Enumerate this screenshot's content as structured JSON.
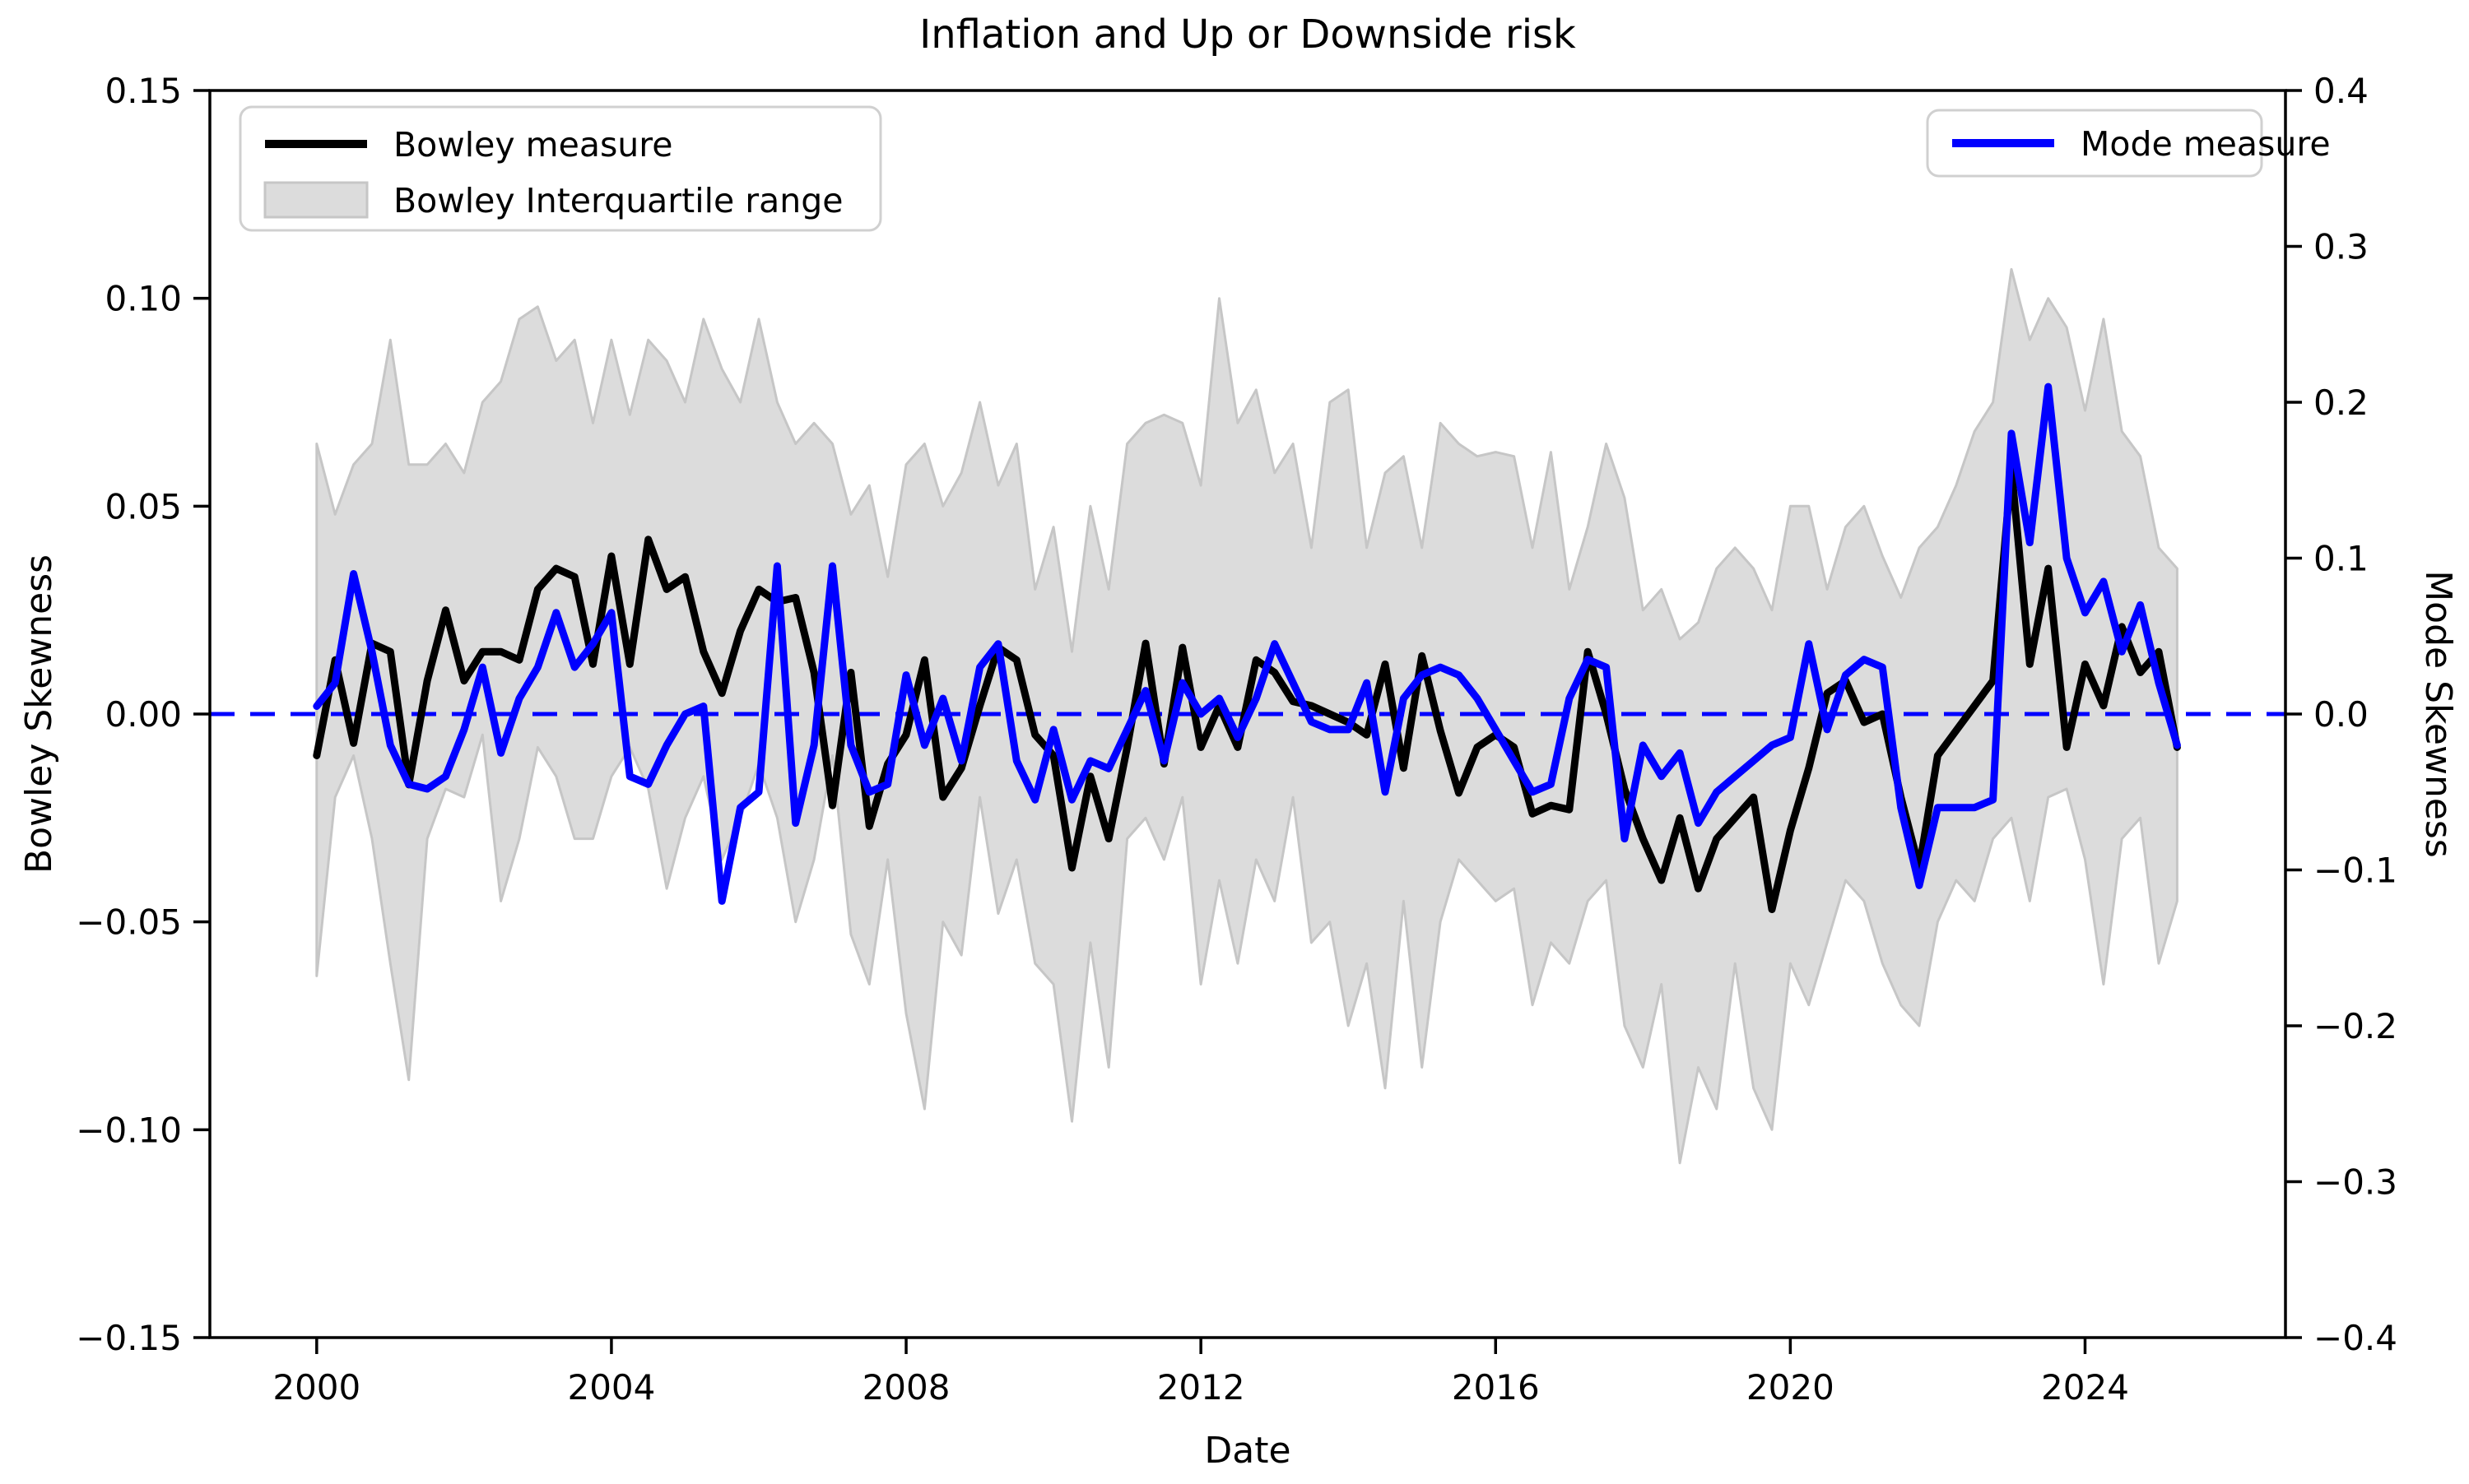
{
  "chart_data": {
    "type": "line",
    "title": "Inflation and Up or Downside risk",
    "xlabel": "Date",
    "ylabel_left": "Bowley Skewness",
    "ylabel_right": "Mode Skewness",
    "x_start": 2000.0,
    "x_step": 0.25,
    "xlim": [
      1998.55,
      2026.72
    ],
    "ylim_left": [
      -0.15,
      0.15
    ],
    "ylim_right": [
      -0.4,
      0.4
    ],
    "x_ticks": [
      2000,
      2004,
      2008,
      2012,
      2016,
      2020,
      2024
    ],
    "y_ticks_left": [
      0.15,
      0.1,
      0.05,
      0.0,
      -0.05,
      -0.1,
      -0.15
    ],
    "y_ticks_right": [
      0.4,
      0.3,
      0.2,
      0.1,
      0.0,
      -0.1,
      -0.2,
      -0.3,
      -0.4
    ],
    "zero_line_value": 0.0,
    "grid": false,
    "legend_left": {
      "entries": [
        {
          "label": "Bowley measure",
          "type": "line",
          "color": "#000000"
        },
        {
          "label": "Bowley Interquartile range",
          "type": "patch",
          "color": "#dcdcdc"
        }
      ],
      "position": "upper left"
    },
    "legend_right": {
      "entries": [
        {
          "label": "Mode measure",
          "type": "line",
          "color": "#0000ff"
        }
      ],
      "position": "upper right"
    },
    "colors": {
      "bowley_line": "#000000",
      "mode_line": "#0000ff",
      "iqr_fill": "#dcdcdc",
      "iqr_edge": "#c6c6c6",
      "zero_dashed": "#0000ff"
    },
    "series": [
      {
        "name": "Bowley measure",
        "axis": "left",
        "values": [
          -0.01,
          0.013,
          -0.007,
          0.017,
          0.015,
          -0.017,
          0.008,
          0.025,
          0.008,
          0.015,
          0.015,
          0.013,
          0.03,
          0.035,
          0.033,
          0.012,
          0.038,
          0.012,
          0.042,
          0.03,
          0.033,
          0.015,
          0.005,
          0.02,
          0.03,
          0.027,
          0.028,
          0.01,
          -0.022,
          0.01,
          -0.027,
          -0.012,
          -0.005,
          0.013,
          -0.02,
          -0.013,
          0.002,
          0.016,
          0.013,
          -0.005,
          -0.01,
          -0.037,
          -0.015,
          -0.03,
          -0.008,
          0.017,
          -0.012,
          0.016,
          -0.008,
          0.002,
          -0.008,
          0.013,
          0.01,
          0.003,
          0.002,
          0.0,
          -0.002,
          -0.005,
          0.012,
          -0.013,
          0.014,
          -0.004,
          -0.019,
          -0.008,
          -0.005,
          -0.008,
          -0.024,
          -0.022,
          -0.023,
          0.015,
          0.0,
          -0.018,
          -0.03,
          -0.04,
          -0.025,
          -0.042,
          -0.03,
          -0.025,
          -0.02,
          -0.047,
          -0.028,
          -0.013,
          0.005,
          0.008,
          -0.002,
          0.0,
          -0.02,
          -0.037,
          -0.01,
          -0.004,
          0.002,
          0.008,
          0.059,
          0.012,
          0.035,
          -0.008,
          0.012,
          0.002,
          0.021,
          0.01,
          0.015,
          -0.008
        ]
      },
      {
        "name": "Mode measure",
        "axis": "right",
        "values": [
          0.005,
          0.02,
          0.09,
          0.04,
          -0.02,
          -0.045,
          -0.048,
          -0.04,
          -0.01,
          0.03,
          -0.025,
          0.01,
          0.03,
          0.065,
          0.03,
          0.045,
          0.065,
          -0.04,
          -0.045,
          -0.02,
          0.0,
          0.005,
          -0.12,
          -0.06,
          -0.05,
          0.095,
          -0.07,
          -0.02,
          0.095,
          -0.02,
          -0.05,
          -0.045,
          0.025,
          -0.02,
          0.01,
          -0.03,
          0.03,
          0.045,
          -0.03,
          -0.055,
          -0.01,
          -0.055,
          -0.03,
          -0.035,
          -0.01,
          0.015,
          -0.03,
          0.02,
          0.0,
          0.01,
          -0.015,
          0.01,
          0.045,
          0.02,
          -0.005,
          -0.01,
          -0.01,
          0.02,
          -0.05,
          0.01,
          0.025,
          0.03,
          0.025,
          0.01,
          -0.01,
          -0.03,
          -0.05,
          -0.045,
          0.01,
          0.035,
          0.03,
          -0.08,
          -0.02,
          -0.04,
          -0.025,
          -0.07,
          -0.05,
          -0.04,
          -0.03,
          -0.02,
          -0.015,
          0.045,
          -0.01,
          0.025,
          0.035,
          0.03,
          -0.06,
          -0.11,
          -0.06,
          -0.06,
          -0.06,
          -0.055,
          0.18,
          0.11,
          0.21,
          0.1,
          0.065,
          0.085,
          0.04,
          0.07,
          0.02,
          -0.02
        ]
      },
      {
        "name": "Bowley Interquartile range upper",
        "axis": "left",
        "values": [
          0.065,
          0.048,
          0.06,
          0.065,
          0.09,
          0.06,
          0.06,
          0.065,
          0.058,
          0.075,
          0.08,
          0.095,
          0.098,
          0.085,
          0.09,
          0.07,
          0.09,
          0.072,
          0.09,
          0.085,
          0.075,
          0.095,
          0.083,
          0.075,
          0.095,
          0.075,
          0.065,
          0.07,
          0.065,
          0.048,
          0.055,
          0.033,
          0.06,
          0.065,
          0.05,
          0.058,
          0.075,
          0.055,
          0.065,
          0.03,
          0.045,
          0.015,
          0.05,
          0.03,
          0.065,
          0.07,
          0.072,
          0.07,
          0.055,
          0.1,
          0.07,
          0.078,
          0.058,
          0.065,
          0.04,
          0.075,
          0.078,
          0.04,
          0.058,
          0.062,
          0.04,
          0.07,
          0.065,
          0.062,
          0.063,
          0.062,
          0.04,
          0.063,
          0.03,
          0.045,
          0.065,
          0.052,
          0.025,
          0.03,
          0.018,
          0.022,
          0.035,
          0.04,
          0.035,
          0.025,
          0.05,
          0.05,
          0.03,
          0.045,
          0.05,
          0.038,
          0.028,
          0.04,
          0.045,
          0.055,
          0.068,
          0.075,
          0.107,
          0.09,
          0.1,
          0.093,
          0.073,
          0.095,
          0.068,
          0.062,
          0.04,
          0.035
        ]
      },
      {
        "name": "Bowley Interquartile range lower",
        "axis": "left",
        "values": [
          -0.063,
          -0.02,
          -0.01,
          -0.03,
          -0.06,
          -0.088,
          -0.03,
          -0.018,
          -0.02,
          -0.005,
          -0.045,
          -0.03,
          -0.008,
          -0.015,
          -0.03,
          -0.03,
          -0.015,
          -0.008,
          -0.018,
          -0.042,
          -0.025,
          -0.015,
          -0.035,
          -0.025,
          -0.012,
          -0.025,
          -0.05,
          -0.035,
          -0.01,
          -0.053,
          -0.065,
          -0.035,
          -0.072,
          -0.095,
          -0.05,
          -0.058,
          -0.02,
          -0.048,
          -0.035,
          -0.06,
          -0.065,
          -0.098,
          -0.055,
          -0.085,
          -0.03,
          -0.025,
          -0.035,
          -0.02,
          -0.065,
          -0.04,
          -0.06,
          -0.035,
          -0.045,
          -0.02,
          -0.055,
          -0.05,
          -0.075,
          -0.06,
          -0.09,
          -0.045,
          -0.085,
          -0.05,
          -0.035,
          -0.04,
          -0.045,
          -0.042,
          -0.07,
          -0.055,
          -0.06,
          -0.045,
          -0.04,
          -0.075,
          -0.085,
          -0.065,
          -0.108,
          -0.085,
          -0.095,
          -0.06,
          -0.09,
          -0.1,
          -0.06,
          -0.07,
          -0.055,
          -0.04,
          -0.045,
          -0.06,
          -0.07,
          -0.075,
          -0.05,
          -0.04,
          -0.045,
          -0.03,
          -0.025,
          -0.045,
          -0.02,
          -0.018,
          -0.035,
          -0.065,
          -0.03,
          -0.025,
          -0.06,
          -0.045
        ]
      }
    ]
  }
}
